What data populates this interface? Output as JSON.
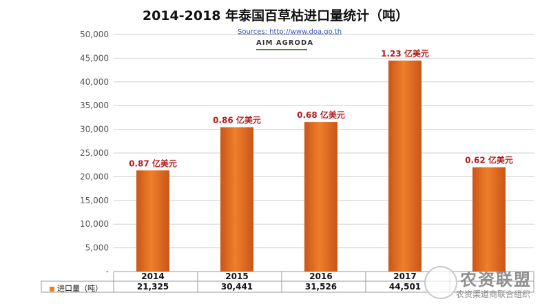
{
  "title": "2014-2018 年泰国百草枯进口量统计（吨）",
  "source_text": "Sources: http://www.doa.go.th",
  "brand_text": "AIM AGRODA",
  "watermark": {
    "name": "农资联盟",
    "subtitle": "农资渠道商联合组织"
  },
  "colors": {
    "bar": "#ef7f2a",
    "bar_dark": "#c9561a",
    "label": "#b21e1e",
    "grid": "#cfcfcf"
  },
  "chart_data": {
    "type": "bar",
    "categories": [
      "2014",
      "2015",
      "2016",
      "2017",
      ""
    ],
    "series": [
      {
        "name": "进口量（吨）",
        "values": [
          21325,
          30441,
          31526,
          44501,
          22000
        ]
      }
    ],
    "data_labels": [
      "0.87 亿美元",
      "0.86 亿美元",
      "0.68 亿美元",
      "1.23 亿美元",
      "0.62 亿美元"
    ],
    "table_values": [
      "21,325",
      "30,441",
      "31,526",
      "44,501",
      ""
    ],
    "ylim": [
      0,
      50000
    ],
    "yticks": [
      0,
      5000,
      10000,
      15000,
      20000,
      25000,
      30000,
      35000,
      40000,
      45000,
      50000
    ],
    "ytick_labels": [
      "-",
      "5,000",
      "10,000",
      "15,000",
      "20,000",
      "25,000",
      "30,000",
      "35,000",
      "40,000",
      "45,000",
      "50,000"
    ],
    "xlabel": "",
    "ylabel": "",
    "grid": true,
    "legend": "table-row"
  }
}
